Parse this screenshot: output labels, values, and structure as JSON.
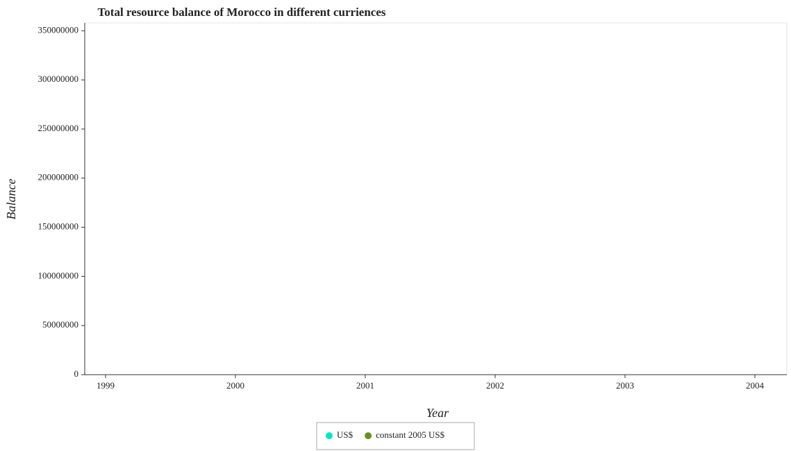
{
  "chart_data": {
    "type": "scatter",
    "title": "Total resource balance of Morocco in different curriences",
    "x_label": "Year",
    "y_label": "Balance",
    "categories": [
      "1999",
      "2000",
      "2001",
      "2002",
      "2003",
      "2004"
    ],
    "series": [
      {
        "name": "US$",
        "color": "#00e6c0",
        "values": [
          null,
          null,
          null,
          null,
          null,
          null
        ]
      },
      {
        "name": "constant 2005 US$",
        "color": "#6b8e23",
        "values": [
          null,
          null,
          null,
          null,
          null,
          null
        ]
      }
    ],
    "ylim": [
      0,
      358000000
    ],
    "yticks": [
      0,
      50000000,
      100000000,
      150000000,
      200000000,
      250000000,
      300000000,
      350000000
    ],
    "grid": false,
    "legend": "bottom"
  }
}
